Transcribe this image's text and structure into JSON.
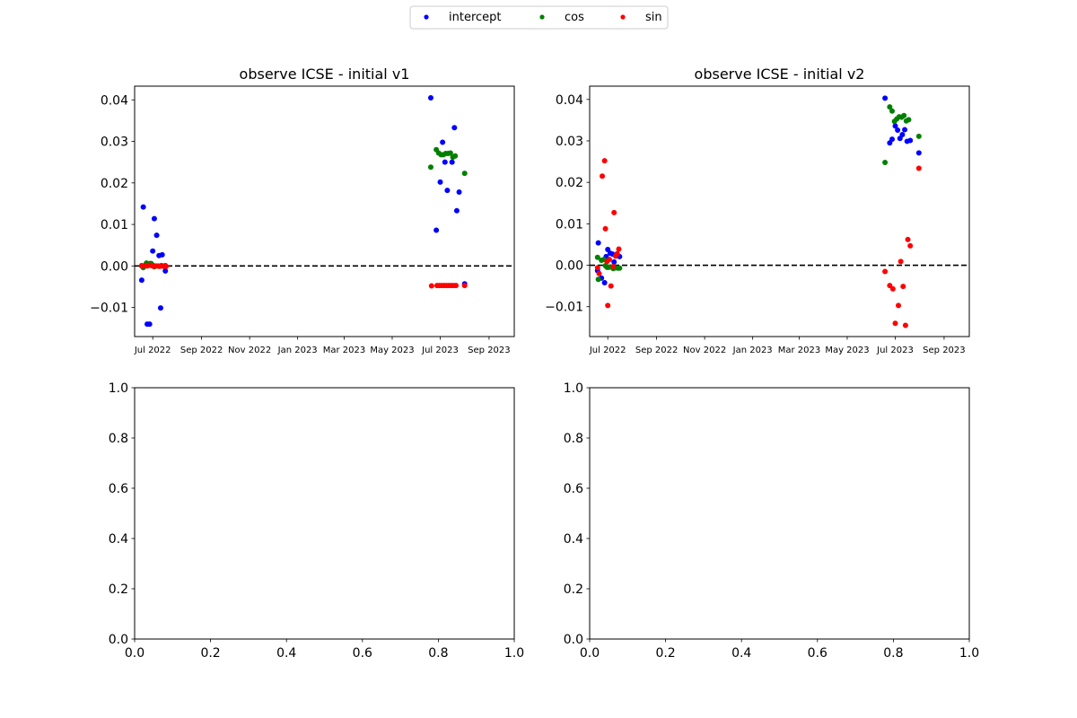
{
  "legend": {
    "entries": [
      {
        "label": "intercept",
        "color": "#0000ff"
      },
      {
        "label": "cos",
        "color": "#008000"
      },
      {
        "label": "sin",
        "color": "#ff0000"
      }
    ],
    "placement": "top-center"
  },
  "chart_data": [
    {
      "type": "scatter",
      "title": "observe ICSE - initial v1",
      "xlabel": "",
      "ylabel": "",
      "x_axis": "date",
      "xlim": [
        "2022-06-08",
        "2023-10-03"
      ],
      "ylim": [
        -0.017,
        0.0433
      ],
      "xticks": [
        {
          "value": "2022-07-01",
          "label": "Jul 2022"
        },
        {
          "value": "2022-09-01",
          "label": "Sep 2022"
        },
        {
          "value": "2022-11-01",
          "label": "Nov 2022"
        },
        {
          "value": "2023-01-01",
          "label": "Jan 2023"
        },
        {
          "value": "2023-03-01",
          "label": "Mar 2023"
        },
        {
          "value": "2023-05-01",
          "label": "May 2023"
        },
        {
          "value": "2023-07-01",
          "label": "Jul 2023"
        },
        {
          "value": "2023-09-01",
          "label": "Sep 2023"
        }
      ],
      "yticks": [
        -0.01,
        0.0,
        0.01,
        0.02,
        0.03,
        0.04
      ],
      "ytick_labels": [
        "−0.01",
        "0.00",
        "0.01",
        "0.02",
        "0.03",
        "0.04"
      ],
      "reference_line": {
        "y": 0,
        "style": "dashed",
        "color": "#000000"
      },
      "grid": false,
      "series": [
        {
          "name": "intercept",
          "color": "#0000ff",
          "points": [
            [
              "2022-06-17",
              -0.0034
            ],
            [
              "2022-06-19",
              0.0142
            ],
            [
              "2022-06-24",
              -0.014
            ],
            [
              "2022-06-27",
              -0.014
            ],
            [
              "2022-06-29",
              0.0005
            ],
            [
              "2022-07-01",
              0.0036
            ],
            [
              "2022-07-03",
              0.0114
            ],
            [
              "2022-07-06",
              0.0074
            ],
            [
              "2022-07-09",
              0.0025
            ],
            [
              "2022-07-11",
              -0.0101
            ],
            [
              "2022-07-13",
              0.0027
            ],
            [
              "2022-07-17",
              -0.0012
            ],
            [
              "2023-06-19",
              0.0405
            ],
            [
              "2023-06-26",
              0.0086
            ],
            [
              "2023-07-01",
              0.0202
            ],
            [
              "2023-07-04",
              0.0298
            ],
            [
              "2023-07-07",
              0.025
            ],
            [
              "2023-07-10",
              0.0182
            ],
            [
              "2023-07-16",
              0.025
            ],
            [
              "2023-07-19",
              0.0333
            ],
            [
              "2023-07-22",
              0.0133
            ],
            [
              "2023-07-25",
              0.0178
            ],
            [
              "2023-08-01",
              -0.0043
            ]
          ]
        },
        {
          "name": "cos",
          "color": "#008000",
          "points": [
            [
              "2022-06-17",
              0.0001
            ],
            [
              "2022-06-19",
              -0.0004
            ],
            [
              "2022-06-23",
              0.0007
            ],
            [
              "2022-06-27",
              0.0006
            ],
            [
              "2022-06-29",
              0.0006
            ],
            [
              "2022-07-01",
              0.0002
            ],
            [
              "2022-07-03",
              -0.0002
            ],
            [
              "2022-07-06",
              0.0
            ],
            [
              "2022-07-09",
              -0.0001
            ],
            [
              "2022-07-12",
              0.0001
            ],
            [
              "2022-07-15",
              0.0
            ],
            [
              "2022-07-17",
              0.0001
            ],
            [
              "2023-06-19",
              0.0238
            ],
            [
              "2023-06-26",
              0.028
            ],
            [
              "2023-06-29",
              0.0272
            ],
            [
              "2023-07-02",
              0.0268
            ],
            [
              "2023-07-05",
              0.0268
            ],
            [
              "2023-07-08",
              0.0271
            ],
            [
              "2023-07-11",
              0.0271
            ],
            [
              "2023-07-14",
              0.0272
            ],
            [
              "2023-07-17",
              0.0262
            ],
            [
              "2023-07-20",
              0.0265
            ],
            [
              "2023-08-01",
              0.0223
            ]
          ]
        },
        {
          "name": "sin",
          "color": "#ff0000",
          "points": [
            [
              "2022-06-17",
              0.0
            ],
            [
              "2022-06-21",
              0.0001
            ],
            [
              "2022-06-24",
              0.0
            ],
            [
              "2022-06-27",
              0.0002
            ],
            [
              "2022-06-29",
              0.0001
            ],
            [
              "2022-07-02",
              -0.0001
            ],
            [
              "2022-07-05",
              0.0
            ],
            [
              "2022-07-08",
              0.0
            ],
            [
              "2022-07-10",
              -0.0001
            ],
            [
              "2022-07-12",
              0.0
            ],
            [
              "2022-07-15",
              -0.0001
            ],
            [
              "2022-07-18",
              -0.0001
            ],
            [
              "2023-06-20",
              -0.0048
            ],
            [
              "2023-06-27",
              -0.0047
            ],
            [
              "2023-06-30",
              -0.0047
            ],
            [
              "2023-07-03",
              -0.0047
            ],
            [
              "2023-07-06",
              -0.0047
            ],
            [
              "2023-07-09",
              -0.0047
            ],
            [
              "2023-07-12",
              -0.0047
            ],
            [
              "2023-07-15",
              -0.0047
            ],
            [
              "2023-07-18",
              -0.0047
            ],
            [
              "2023-07-21",
              -0.0047
            ],
            [
              "2023-08-01",
              -0.0047
            ]
          ]
        }
      ]
    },
    {
      "type": "scatter",
      "title": "observe ICSE - initial v2",
      "xlabel": "",
      "ylabel": "",
      "x_axis": "date",
      "xlim": [
        "2022-06-08",
        "2023-10-03"
      ],
      "ylim": [
        -0.0172,
        0.0432
      ],
      "xticks": [
        {
          "value": "2022-07-01",
          "label": "Jul 2022"
        },
        {
          "value": "2022-09-01",
          "label": "Sep 2022"
        },
        {
          "value": "2022-11-01",
          "label": "Nov 2022"
        },
        {
          "value": "2023-01-01",
          "label": "Jan 2023"
        },
        {
          "value": "2023-03-01",
          "label": "Mar 2023"
        },
        {
          "value": "2023-05-01",
          "label": "May 2023"
        },
        {
          "value": "2023-07-01",
          "label": "Jul 2023"
        },
        {
          "value": "2023-09-01",
          "label": "Sep 2023"
        }
      ],
      "yticks": [
        -0.01,
        0.0,
        0.01,
        0.02,
        0.03,
        0.04
      ],
      "ytick_labels": [
        "−0.01",
        "0.00",
        "0.01",
        "0.02",
        "0.03",
        "0.04"
      ],
      "reference_line": {
        "y": 0,
        "style": "dashed",
        "color": "#000000"
      },
      "grid": false,
      "series": [
        {
          "name": "intercept",
          "color": "#0000ff",
          "points": [
            [
              "2022-06-18",
              -0.0013
            ],
            [
              "2022-06-19",
              0.0054
            ],
            [
              "2022-06-23",
              -0.0031
            ],
            [
              "2022-06-27",
              -0.0042
            ],
            [
              "2022-06-29",
              0.0021
            ],
            [
              "2022-07-01",
              0.0038
            ],
            [
              "2022-07-04",
              0.0029
            ],
            [
              "2022-07-07",
              0.0027
            ],
            [
              "2022-07-09",
              0.0008
            ],
            [
              "2022-07-13",
              0.0023
            ],
            [
              "2022-07-16",
              0.0021
            ],
            [
              "2023-06-18",
              0.0403
            ],
            [
              "2023-06-24",
              0.0295
            ],
            [
              "2023-06-27",
              0.0304
            ],
            [
              "2023-07-01",
              0.0336
            ],
            [
              "2023-07-04",
              0.0326
            ],
            [
              "2023-07-07",
              0.0306
            ],
            [
              "2023-07-10",
              0.0315
            ],
            [
              "2023-07-13",
              0.0327
            ],
            [
              "2023-07-16",
              0.0299
            ],
            [
              "2023-07-20",
              0.0301
            ],
            [
              "2023-07-31",
              0.0271
            ]
          ]
        },
        {
          "name": "cos",
          "color": "#008000",
          "points": [
            [
              "2022-06-18",
              0.0019
            ],
            [
              "2022-06-19",
              -0.0034
            ],
            [
              "2022-06-23",
              0.0012
            ],
            [
              "2022-06-26",
              0.0014
            ],
            [
              "2022-06-28",
              -0.0001
            ],
            [
              "2022-06-30",
              -0.0005
            ],
            [
              "2022-07-02",
              -0.0005
            ],
            [
              "2022-07-05",
              -0.0004
            ],
            [
              "2022-07-08",
              -0.0008
            ],
            [
              "2022-07-11",
              -0.0006
            ],
            [
              "2022-07-14",
              -0.0007
            ],
            [
              "2022-07-16",
              -0.0007
            ],
            [
              "2023-06-18",
              0.0248
            ],
            [
              "2023-06-24",
              0.0382
            ],
            [
              "2023-06-27",
              0.0372
            ],
            [
              "2023-06-30",
              0.0347
            ],
            [
              "2023-07-03",
              0.0353
            ],
            [
              "2023-07-06",
              0.0358
            ],
            [
              "2023-07-09",
              0.0357
            ],
            [
              "2023-07-12",
              0.0361
            ],
            [
              "2023-07-15",
              0.0348
            ],
            [
              "2023-07-18",
              0.0351
            ],
            [
              "2023-07-31",
              0.0311
            ]
          ]
        },
        {
          "name": "sin",
          "color": "#ff0000",
          "points": [
            [
              "2022-06-18",
              -0.0006
            ],
            [
              "2022-06-20",
              -0.002
            ],
            [
              "2022-06-24",
              0.0215
            ],
            [
              "2022-06-27",
              0.0252
            ],
            [
              "2022-06-28",
              0.0088
            ],
            [
              "2022-06-30",
              0.0009
            ],
            [
              "2022-07-01",
              -0.0097
            ],
            [
              "2022-07-03",
              0.0014
            ],
            [
              "2022-07-05",
              -0.005
            ],
            [
              "2022-07-08",
              -0.0003
            ],
            [
              "2022-07-09",
              0.0127
            ],
            [
              "2022-07-11",
              0.0022
            ],
            [
              "2022-07-13",
              0.0028
            ],
            [
              "2022-07-15",
              0.0039
            ],
            [
              "2023-06-18",
              -0.0015
            ],
            [
              "2023-06-24",
              -0.0049
            ],
            [
              "2023-06-28",
              -0.0057
            ],
            [
              "2023-07-01",
              -0.014
            ],
            [
              "2023-07-05",
              -0.0097
            ],
            [
              "2023-07-08",
              0.0009
            ],
            [
              "2023-07-11",
              -0.0051
            ],
            [
              "2023-07-14",
              -0.0145
            ],
            [
              "2023-07-17",
              0.0062
            ],
            [
              "2023-07-20",
              0.0047
            ],
            [
              "2023-07-31",
              0.0234
            ]
          ]
        }
      ]
    },
    {
      "type": "scatter",
      "title": "",
      "xlim": [
        0,
        1
      ],
      "ylim": [
        0,
        1
      ],
      "xticks": [
        0,
        0.2,
        0.4,
        0.6,
        0.8,
        1.0
      ],
      "xtick_labels": [
        "0.0",
        "0.2",
        "0.4",
        "0.6",
        "0.8",
        "1.0"
      ],
      "yticks": [
        0,
        0.2,
        0.4,
        0.6,
        0.8,
        1.0
      ],
      "ytick_labels": [
        "0.0",
        "0.2",
        "0.4",
        "0.6",
        "0.8",
        "1.0"
      ],
      "series": []
    },
    {
      "type": "scatter",
      "title": "",
      "xlim": [
        0,
        1
      ],
      "ylim": [
        0,
        1
      ],
      "xticks": [
        0,
        0.2,
        0.4,
        0.6,
        0.8,
        1.0
      ],
      "xtick_labels": [
        "0.0",
        "0.2",
        "0.4",
        "0.6",
        "0.8",
        "1.0"
      ],
      "yticks": [
        0,
        0.2,
        0.4,
        0.6,
        0.8,
        1.0
      ],
      "ytick_labels": [
        "0.0",
        "0.2",
        "0.4",
        "0.6",
        "0.8",
        "1.0"
      ],
      "series": []
    }
  ]
}
